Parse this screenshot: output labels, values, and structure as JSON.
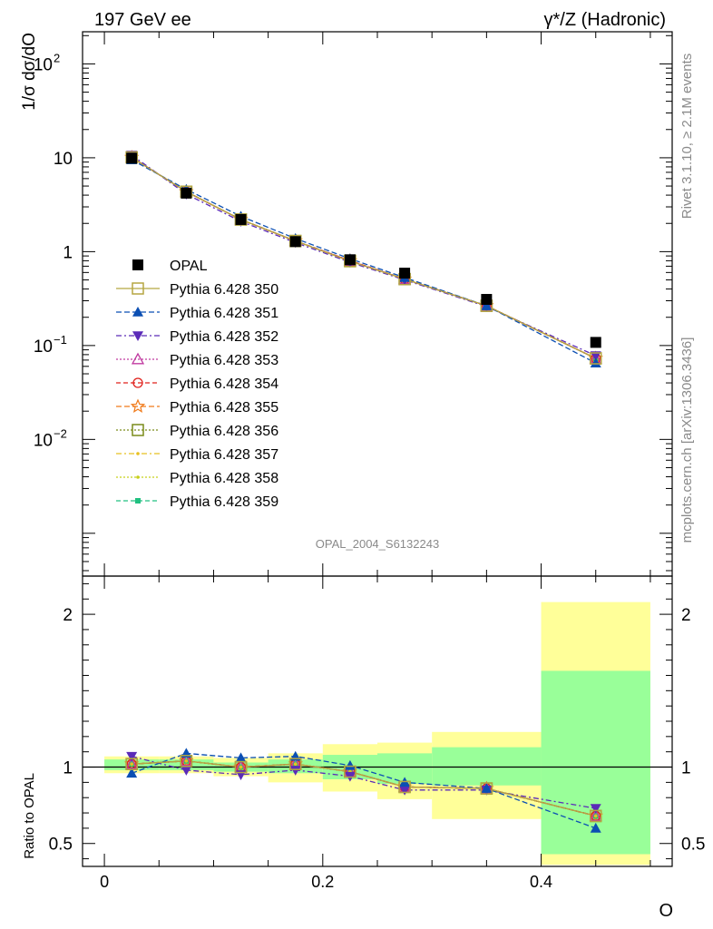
{
  "header": {
    "left_label": "197 GeV ee",
    "right_label": "γ*/Z (Hadronic)"
  },
  "side_labels": {
    "rivet": "Rivet 3.1.10, ≥ 2.1M events",
    "mcplots": "mcplots.cern.ch [arXiv:1306.3436]"
  },
  "analysis_label": "OPAL_2004_S6132243",
  "colors": {
    "band_inner": "#99ff99",
    "band_outer": "#ffff99",
    "data": "#000000"
  },
  "chart_data": [
    {
      "type": "line",
      "panel": "main",
      "ylabel": "1/σ dσ/dO",
      "xlabel": "O",
      "yscale": "log",
      "xlim": [
        -0.02,
        0.52
      ],
      "ylim": [
        0.00035,
        220
      ],
      "x_ticks": [
        "0",
        "0.2",
        "0.4"
      ],
      "y_ticks": [
        "10^-2",
        "10^-1",
        "1",
        "10",
        "10^2"
      ],
      "legend_position": "left-center",
      "x": [
        0.025,
        0.075,
        0.125,
        0.175,
        0.225,
        0.275,
        0.35,
        0.45
      ],
      "bins": [
        [
          0.0,
          0.05
        ],
        [
          0.05,
          0.1
        ],
        [
          0.1,
          0.15
        ],
        [
          0.15,
          0.2
        ],
        [
          0.2,
          0.25
        ],
        [
          0.25,
          0.3
        ],
        [
          0.3,
          0.4
        ],
        [
          0.4,
          0.5
        ]
      ],
      "series": [
        {
          "name": "OPAL",
          "color": "#000000",
          "marker": "square-filled",
          "dash": "none",
          "values": [
            9.9,
            4.2,
            2.2,
            1.28,
            0.82,
            0.59,
            0.31,
            0.108
          ]
        },
        {
          "name": "Pythia 6.428 350",
          "color": "#b5a642",
          "marker": "square-open",
          "dash": "solid",
          "values": [
            10.1,
            4.35,
            2.2,
            1.3,
            0.79,
            0.51,
            0.265,
            0.073
          ]
        },
        {
          "name": "Pythia 6.428 351",
          "color": "#0b4fb3",
          "marker": "triangle-up",
          "dash": "6,3",
          "values": [
            9.5,
            4.6,
            2.38,
            1.38,
            0.84,
            0.53,
            0.265,
            0.065
          ]
        },
        {
          "name": "Pythia 6.428 352",
          "color": "#5b2bb8",
          "marker": "triangle-down",
          "dash": "6,3,2,3",
          "values": [
            10.7,
            4.1,
            2.1,
            1.25,
            0.77,
            0.5,
            0.26,
            0.078
          ]
        },
        {
          "name": "Pythia 6.428 353",
          "color": "#c03aa0",
          "marker": "triangle-open",
          "dash": "2,2",
          "values": [
            10.1,
            4.35,
            2.2,
            1.3,
            0.8,
            0.51,
            0.265,
            0.073
          ]
        },
        {
          "name": "Pythia 6.428 354",
          "color": "#e0201b",
          "marker": "circle-open",
          "dash": "5,3",
          "values": [
            10.1,
            4.35,
            2.2,
            1.3,
            0.8,
            0.51,
            0.265,
            0.073
          ]
        },
        {
          "name": "Pythia 6.428 355",
          "color": "#f07a1a",
          "marker": "star-open",
          "dash": "6,3",
          "values": [
            10.1,
            4.35,
            2.2,
            1.3,
            0.8,
            0.51,
            0.265,
            0.073
          ]
        },
        {
          "name": "Pythia 6.428 356",
          "color": "#7a8c1a",
          "marker": "square-open",
          "dash": "2,2",
          "values": [
            10.1,
            4.35,
            2.2,
            1.3,
            0.8,
            0.51,
            0.265,
            0.073
          ]
        },
        {
          "name": "Pythia 6.428 357",
          "color": "#e8c020",
          "marker": "dot",
          "dash": "6,3,2,3",
          "values": [
            10.1,
            4.35,
            2.2,
            1.3,
            0.8,
            0.51,
            0.265,
            0.073
          ]
        },
        {
          "name": "Pythia 6.428 358",
          "color": "#c8d01a",
          "marker": "dot",
          "dash": "2,2",
          "values": [
            10.1,
            4.35,
            2.2,
            1.3,
            0.8,
            0.51,
            0.265,
            0.073
          ]
        },
        {
          "name": "Pythia 6.428 359",
          "color": "#20c080",
          "marker": "square-small",
          "dash": "5,3",
          "values": [
            10.1,
            4.35,
            2.2,
            1.3,
            0.8,
            0.51,
            0.265,
            0.073
          ]
        }
      ]
    },
    {
      "type": "line",
      "panel": "ratio",
      "ylabel": "Ratio to OPAL",
      "xlabel": "O",
      "ylim": [
        0.35,
        2.25
      ],
      "xlim": [
        -0.02,
        0.52
      ],
      "y_ticks": [
        "0.5",
        "1",
        "2"
      ],
      "x_ticks": [
        "0",
        "0.2",
        "0.4"
      ],
      "reference_line": 1,
      "x": [
        0.025,
        0.075,
        0.125,
        0.175,
        0.225,
        0.275,
        0.35,
        0.45
      ],
      "bands": {
        "inner": [
          [
            0.98,
            1.05
          ],
          [
            0.98,
            1.05
          ],
          [
            0.97,
            1.03
          ],
          [
            0.96,
            1.05
          ],
          [
            0.92,
            1.08
          ],
          [
            0.89,
            1.09
          ],
          [
            0.88,
            1.13
          ],
          [
            0.43,
            1.63
          ]
        ],
        "outer": [
          [
            0.96,
            1.07
          ],
          [
            0.96,
            1.07
          ],
          [
            0.94,
            1.06
          ],
          [
            0.9,
            1.09
          ],
          [
            0.84,
            1.15
          ],
          [
            0.79,
            1.16
          ],
          [
            0.66,
            1.23
          ],
          [
            0.36,
            2.08
          ]
        ]
      },
      "series": [
        {
          "name": "Pythia 6.428 350",
          "values": [
            1.02,
            1.04,
            1.0,
            1.02,
            0.97,
            0.87,
            0.86,
            0.68
          ]
        },
        {
          "name": "Pythia 6.428 351",
          "values": [
            0.96,
            1.09,
            1.06,
            1.07,
            1.01,
            0.9,
            0.86,
            0.6
          ]
        },
        {
          "name": "Pythia 6.428 352",
          "values": [
            1.07,
            0.98,
            0.95,
            0.98,
            0.94,
            0.85,
            0.85,
            0.73
          ]
        },
        {
          "name": "Pythia 6.428 353",
          "values": [
            1.02,
            1.04,
            1.0,
            1.02,
            0.97,
            0.87,
            0.86,
            0.68
          ]
        },
        {
          "name": "Pythia 6.428 354",
          "values": [
            1.02,
            1.04,
            1.0,
            1.02,
            0.97,
            0.87,
            0.86,
            0.68
          ]
        },
        {
          "name": "Pythia 6.428 355",
          "values": [
            1.02,
            1.04,
            1.0,
            1.02,
            0.97,
            0.87,
            0.86,
            0.68
          ]
        },
        {
          "name": "Pythia 6.428 356",
          "values": [
            1.02,
            1.04,
            1.0,
            1.02,
            0.97,
            0.87,
            0.86,
            0.68
          ]
        },
        {
          "name": "Pythia 6.428 357",
          "values": [
            1.02,
            1.04,
            1.0,
            1.02,
            0.97,
            0.87,
            0.86,
            0.68
          ]
        },
        {
          "name": "Pythia 6.428 358",
          "values": [
            1.02,
            1.04,
            1.0,
            1.02,
            0.97,
            0.87,
            0.86,
            0.68
          ]
        },
        {
          "name": "Pythia 6.428 359",
          "values": [
            1.02,
            1.04,
            1.0,
            1.02,
            0.97,
            0.87,
            0.86,
            0.68
          ]
        }
      ]
    }
  ]
}
